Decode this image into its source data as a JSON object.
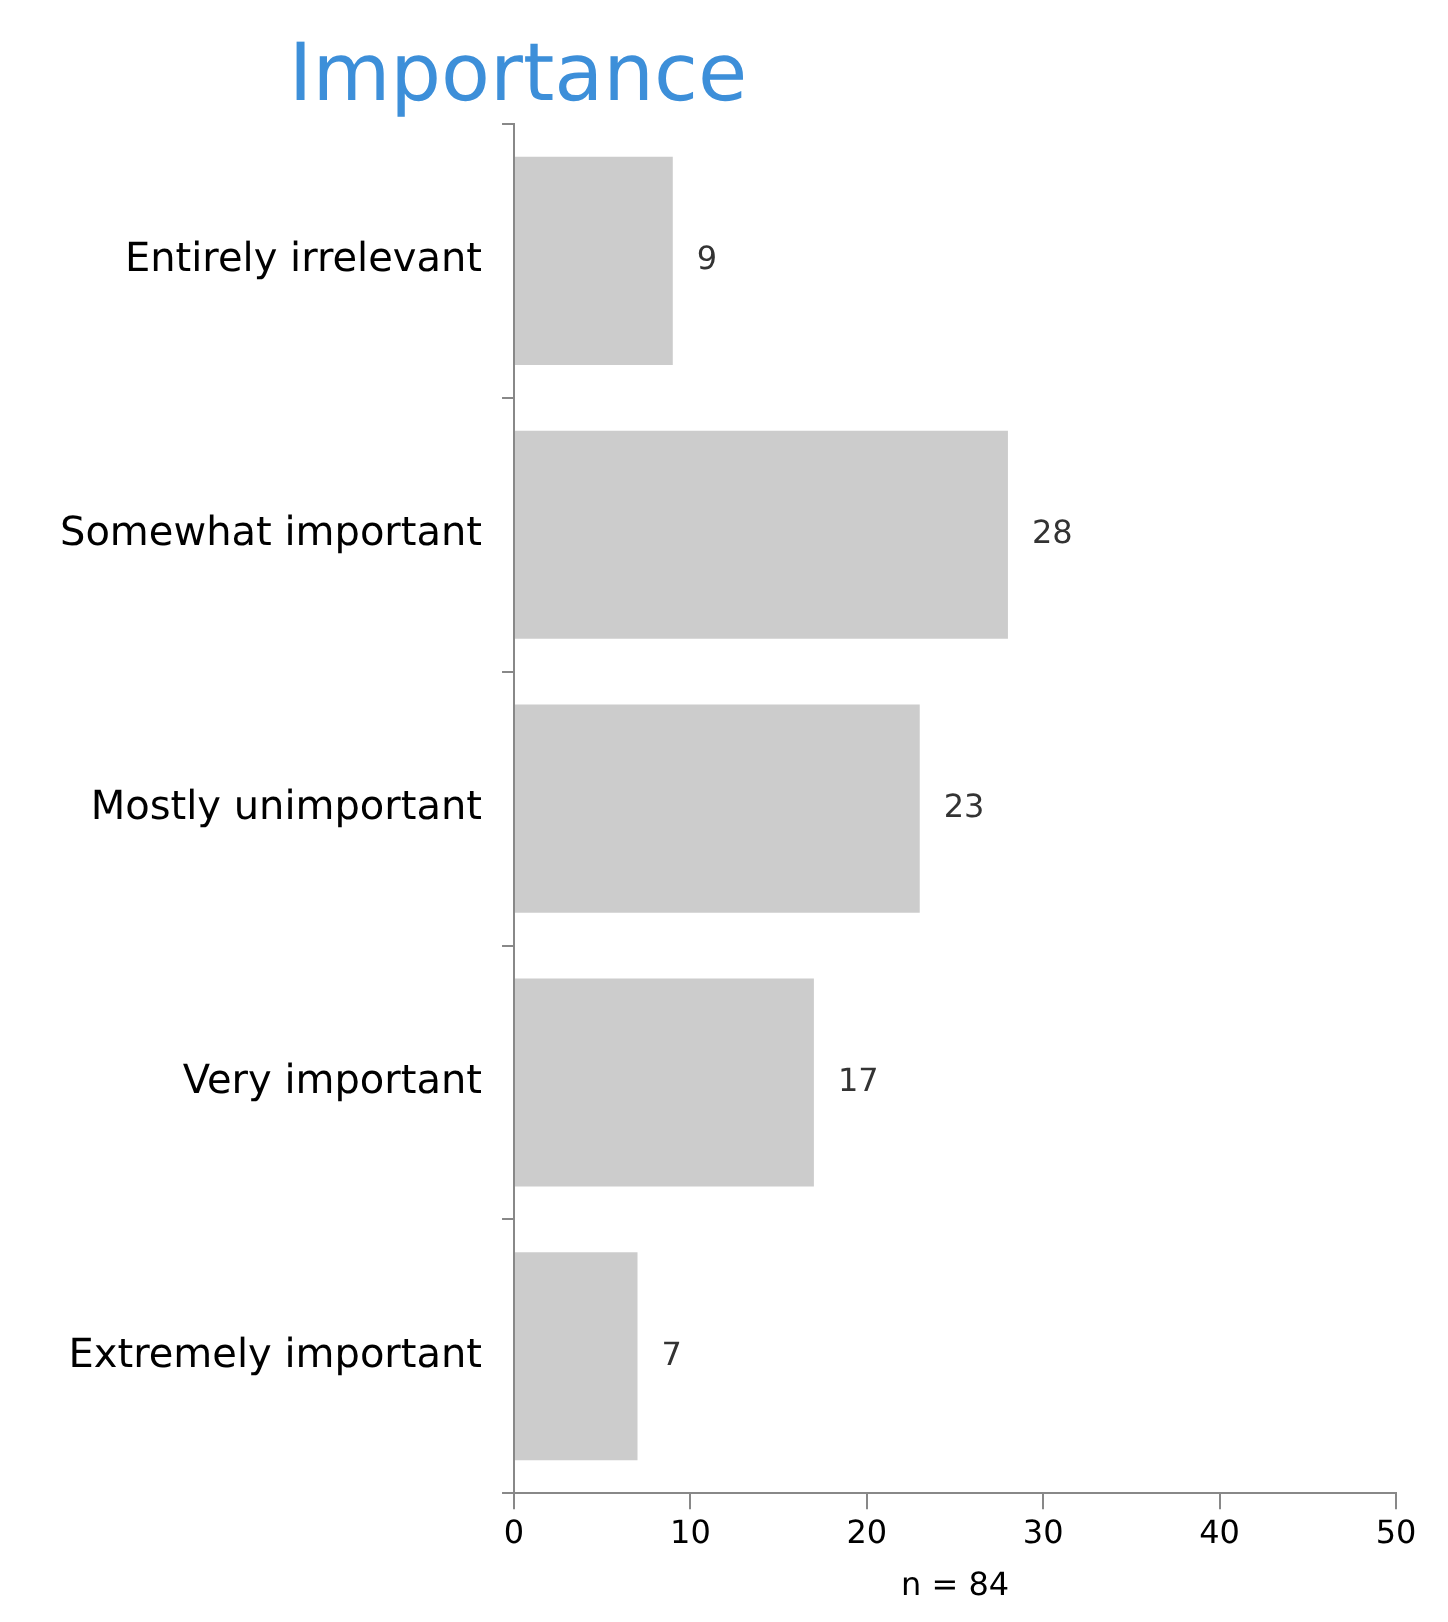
{
  "chart_data": {
    "type": "bar",
    "title": "Importance",
    "orientation": "horizontal",
    "categories": [
      "Entirely irrelevant",
      "Somewhat important",
      "Mostly unimportant",
      "Very important",
      "Extremely important"
    ],
    "values": [
      9,
      28,
      23,
      17,
      7
    ],
    "color": "#cccccc",
    "xlim": [
      0,
      50
    ],
    "xticks": [
      0,
      10,
      20,
      30,
      40,
      50
    ],
    "xlabel": "n = 84",
    "data_labels": true,
    "grid": false,
    "legend": false
  }
}
